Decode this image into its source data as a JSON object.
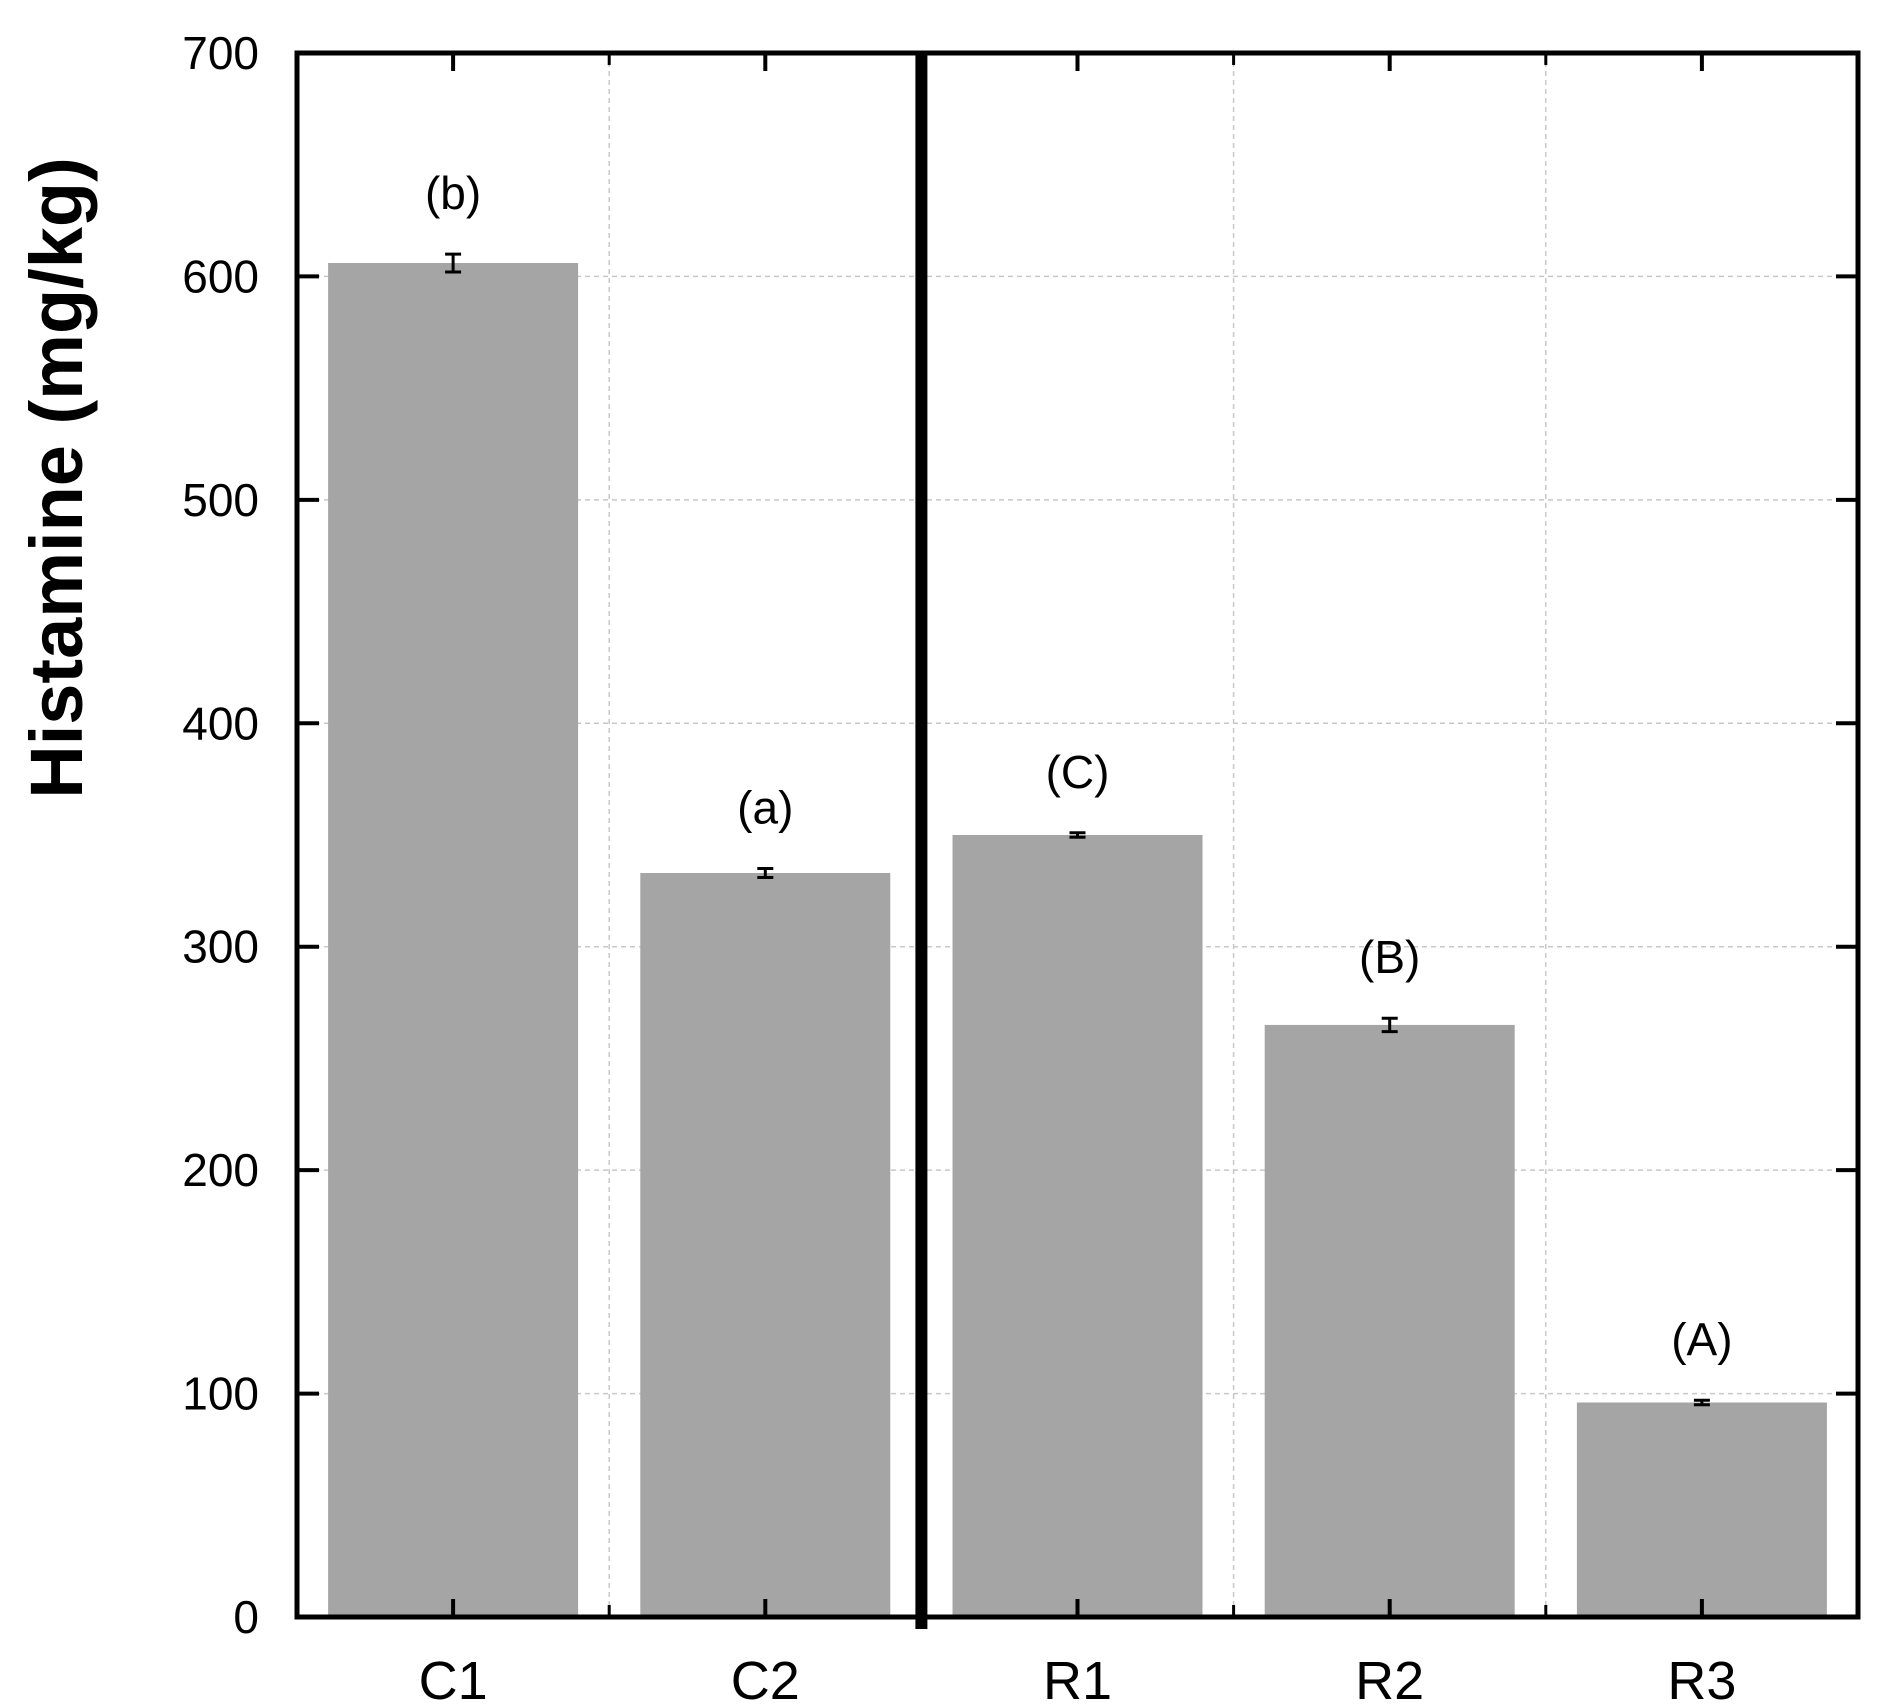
{
  "chart_data": {
    "type": "bar",
    "categories": [
      "C1",
      "C2",
      "R1",
      "R2",
      "R3"
    ],
    "values": [
      606,
      333,
      350,
      265,
      96
    ],
    "errors": [
      4,
      2,
      1,
      3,
      1
    ],
    "significance_labels": [
      "(b)",
      "(a)",
      "(C)",
      "(B)",
      "(A)"
    ],
    "title": "",
    "xlabel": "",
    "ylabel": "Histamine (mg/kg)",
    "ylim": [
      0,
      700
    ],
    "yticks": [
      0,
      100,
      200,
      300,
      400,
      500,
      600,
      700
    ],
    "ytick_labels": [
      "0",
      "100",
      "200",
      "300",
      "400",
      "500",
      "600",
      "700"
    ],
    "grid": true,
    "group_separator_after": "C2",
    "colors": {
      "bar": "#a5a5a5",
      "axis": "#000000",
      "grid": "#c8c8c8",
      "error_bar": "#000000"
    }
  }
}
